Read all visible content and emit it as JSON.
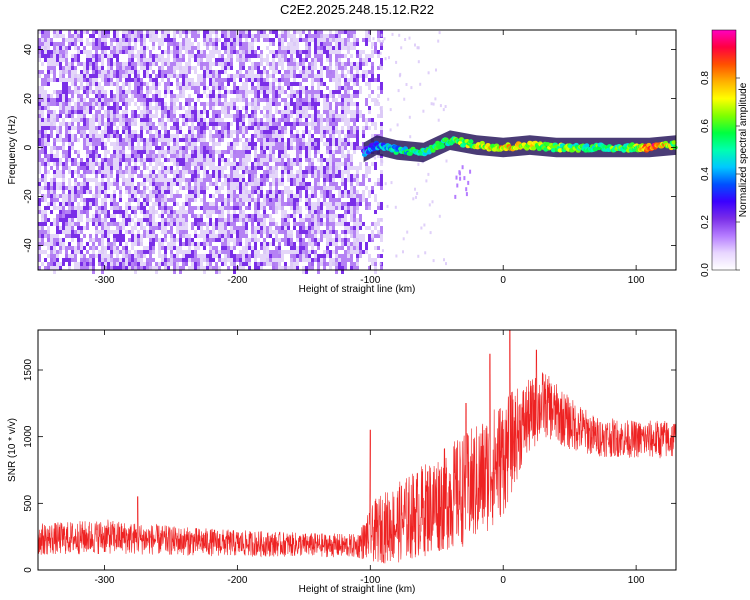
{
  "title": "C2E2.2025.248.15.12.R22",
  "colors": {
    "background": "#ffffff",
    "snr_line": "#ee2222",
    "noise_purple": "#7a2ee8",
    "noise_light": "#d8c4f7"
  },
  "chart_data": [
    {
      "type": "heatmap",
      "xlabel": "Height of straight line (km)",
      "ylabel": "Frequency (Hz)",
      "xlim": [
        -350,
        130
      ],
      "ylim": [
        -50,
        48
      ],
      "xticks": [
        -300,
        -200,
        -100,
        0,
        100
      ],
      "yticks": [
        -40,
        -20,
        0,
        20,
        40
      ],
      "grid": false,
      "colorbar": {
        "label": "Normalized spectral amplitude",
        "range": [
          0,
          1
        ],
        "ticks": [
          "0.0",
          "0.2",
          "0.4",
          "0.6",
          "0.8"
        ],
        "colormap": [
          "#ffffff",
          "#e8d6ff",
          "#b57cff",
          "#7a2ee8",
          "#3a00ff",
          "#0050ff",
          "#00c8ff",
          "#00ffb0",
          "#00ff40",
          "#80ff00",
          "#ffff00",
          "#ffb000",
          "#ff5000",
          "#ff0040",
          "#ff00c0"
        ]
      },
      "noise_region": {
        "x_range": [
          -350,
          -100
        ],
        "y_range": [
          -50,
          48
        ]
      },
      "signal_track": [
        {
          "x": -105,
          "freq": -2,
          "amp": 0.3
        },
        {
          "x": -95,
          "freq": 1,
          "amp": 0.4
        },
        {
          "x": -80,
          "freq": -1,
          "amp": 0.45
        },
        {
          "x": -60,
          "freq": -2,
          "amp": 0.5
        },
        {
          "x": -40,
          "freq": 3,
          "amp": 0.55
        },
        {
          "x": -20,
          "freq": 1,
          "amp": 0.65
        },
        {
          "x": 0,
          "freq": 0,
          "amp": 0.75
        },
        {
          "x": 20,
          "freq": 1,
          "amp": 0.7
        },
        {
          "x": 40,
          "freq": 0,
          "amp": 0.6
        },
        {
          "x": 60,
          "freq": 0,
          "amp": 0.55
        },
        {
          "x": 80,
          "freq": 0,
          "amp": 0.55
        },
        {
          "x": 100,
          "freq": 0,
          "amp": 0.6
        },
        {
          "x": 110,
          "freq": 0,
          "amp": 0.9
        },
        {
          "x": 130,
          "freq": 1,
          "amp": 0.6
        }
      ]
    },
    {
      "type": "line",
      "xlabel": "Height of straight line (km)",
      "ylabel": "SNR (10 * v/v)",
      "xlim": [
        -350,
        130
      ],
      "ylim": [
        0,
        1800
      ],
      "xticks": [
        -300,
        -200,
        -100,
        0,
        100
      ],
      "yticks": [
        0,
        500,
        1000,
        1500
      ],
      "grid": false,
      "series": [
        {
          "color": "#ee2222",
          "envelope": [
            {
              "x": -350,
              "mean": 230,
              "spread": 120
            },
            {
              "x": -300,
              "mean": 250,
              "spread": 130
            },
            {
              "x": -250,
              "mean": 220,
              "spread": 110
            },
            {
              "x": -200,
              "mean": 200,
              "spread": 100
            },
            {
              "x": -150,
              "mean": 190,
              "spread": 90
            },
            {
              "x": -110,
              "mean": 180,
              "spread": 90
            },
            {
              "x": -95,
              "mean": 300,
              "spread": 250
            },
            {
              "x": -80,
              "mean": 350,
              "spread": 300
            },
            {
              "x": -60,
              "mean": 450,
              "spread": 350
            },
            {
              "x": -40,
              "mean": 550,
              "spread": 400
            },
            {
              "x": -20,
              "mean": 650,
              "spread": 450
            },
            {
              "x": 0,
              "mean": 850,
              "spread": 450
            },
            {
              "x": 15,
              "mean": 1100,
              "spread": 300
            },
            {
              "x": 30,
              "mean": 1250,
              "spread": 250
            },
            {
              "x": 50,
              "mean": 1100,
              "spread": 200
            },
            {
              "x": 70,
              "mean": 1000,
              "spread": 150
            },
            {
              "x": 100,
              "mean": 980,
              "spread": 140
            },
            {
              "x": 130,
              "mean": 980,
              "spread": 150
            }
          ],
          "spikes": [
            {
              "x": -275,
              "y": 550
            },
            {
              "x": -100,
              "y": 1050
            },
            {
              "x": -28,
              "y": 1250
            },
            {
              "x": -10,
              "y": 1620
            },
            {
              "x": 5,
              "y": 1800
            },
            {
              "x": 25,
              "y": 1650
            }
          ]
        }
      ]
    }
  ]
}
